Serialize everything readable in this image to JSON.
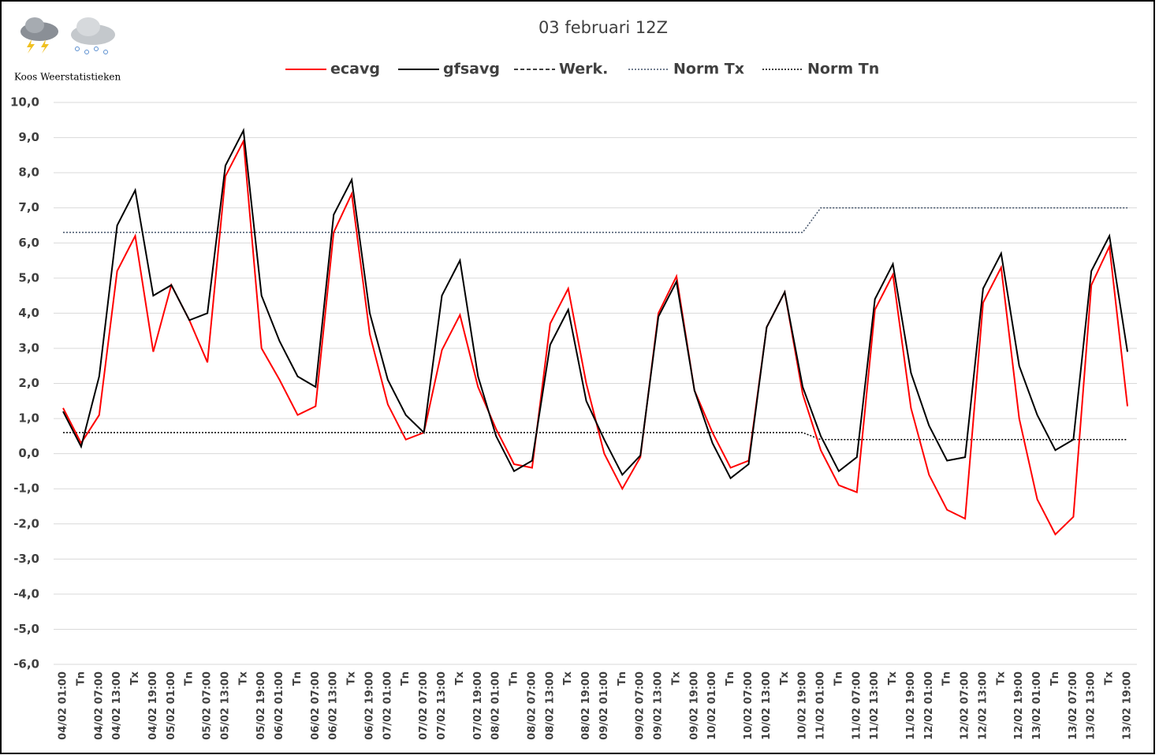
{
  "chart_data": {
    "type": "line",
    "title": "03 februari 12Z",
    "credit": "Koos Weerstatistieken",
    "categories": [
      "04/02 01:00",
      "Tn",
      "04/02 07:00",
      "04/02 13:00",
      "Tx",
      "04/02 19:00",
      "05/02 01:00",
      "Tn",
      "05/02 07:00",
      "05/02 13:00",
      "Tx",
      "05/02 19:00",
      "06/02 01:00",
      "Tn",
      "06/02 07:00",
      "06/02 13:00",
      "Tx",
      "06/02 19:00",
      "07/02 01:00",
      "Tn",
      "07/02 07:00",
      "07/02 13:00",
      "Tx",
      "07/02 19:00",
      "08/02 01:00",
      "Tn",
      "08/02 07:00",
      "08/02 13:00",
      "Tx",
      "08/02 19:00",
      "09/02 01:00",
      "Tn",
      "09/02 07:00",
      "09/02 13:00",
      "Tx",
      "09/02 19:00",
      "10/02 01:00",
      "Tn",
      "10/02 07:00",
      "10/02 13:00",
      "Tx",
      "10/02 19:00",
      "11/02 01:00",
      "Tn",
      "11/02 07:00",
      "11/02 13:00",
      "Tx",
      "11/02 19:00",
      "12/02 01:00",
      "Tn",
      "12/02 07:00",
      "12/02 13:00",
      "Tx",
      "12/02 19:00",
      "13/02 01:00",
      "Tn",
      "13/02 07:00",
      "13/02 13:00",
      "Tx",
      "13/02 19:00"
    ],
    "series": [
      {
        "name": "ecavg",
        "color": "#ff0000",
        "dash": "solid",
        "width": 2,
        "values": [
          1.3,
          0.3,
          1.1,
          5.2,
          6.2,
          2.9,
          4.8,
          3.8,
          2.6,
          7.9,
          8.9,
          3.0,
          2.1,
          1.1,
          1.35,
          6.3,
          7.4,
          3.4,
          1.4,
          0.4,
          0.6,
          2.95,
          3.95,
          1.9,
          0.7,
          -0.3,
          -0.4,
          3.7,
          4.7,
          2.0,
          0.0,
          -1.0,
          -0.1,
          4.0,
          5.05,
          1.8,
          0.6,
          -0.4,
          -0.2,
          3.6,
          4.6,
          1.7,
          0.1,
          -0.9,
          -1.1,
          4.1,
          5.1,
          1.3,
          -0.6,
          -1.6,
          -1.85,
          4.3,
          5.3,
          1.0,
          -1.3,
          -2.3,
          -1.8,
          4.8,
          5.9,
          1.35
        ]
      },
      {
        "name": "gfsavg",
        "color": "#000000",
        "dash": "solid",
        "width": 2,
        "values": [
          1.2,
          0.2,
          2.2,
          6.5,
          7.5,
          4.5,
          4.8,
          3.8,
          4.0,
          8.2,
          9.2,
          4.5,
          3.2,
          2.2,
          1.9,
          6.8,
          7.8,
          4.0,
          2.1,
          1.1,
          0.6,
          4.5,
          5.5,
          2.2,
          0.5,
          -0.5,
          -0.2,
          3.1,
          4.1,
          1.5,
          0.4,
          -0.6,
          -0.05,
          3.9,
          4.9,
          1.8,
          0.3,
          -0.7,
          -0.3,
          3.6,
          4.6,
          1.9,
          0.5,
          -0.5,
          -0.1,
          4.4,
          5.4,
          2.3,
          0.8,
          -0.2,
          -0.1,
          4.7,
          5.7,
          2.5,
          1.1,
          0.1,
          0.4,
          5.2,
          6.2,
          2.9
        ]
      },
      {
        "name": "Werk.",
        "color": "#000000",
        "dash": "dashed",
        "width": 1.5,
        "values": [
          null,
          null,
          null,
          null,
          null,
          null,
          null,
          null,
          null,
          null,
          null,
          null,
          null,
          null,
          null,
          null,
          null,
          null,
          null,
          null,
          null,
          null,
          null,
          null,
          null,
          null,
          null,
          null,
          null,
          null,
          null,
          null,
          null,
          null,
          null,
          null,
          null,
          null,
          null,
          null,
          null,
          null,
          null,
          null,
          null,
          null,
          null,
          null,
          null,
          null,
          null,
          null,
          null,
          null,
          null,
          null,
          null,
          null,
          null,
          null
        ]
      },
      {
        "name": "Norm Tx",
        "color": "#44546a",
        "dash": "dotted",
        "width": 1.5,
        "values": [
          6.3,
          6.3,
          6.3,
          6.3,
          6.3,
          6.3,
          6.3,
          6.3,
          6.3,
          6.3,
          6.3,
          6.3,
          6.3,
          6.3,
          6.3,
          6.3,
          6.3,
          6.3,
          6.3,
          6.3,
          6.3,
          6.3,
          6.3,
          6.3,
          6.3,
          6.3,
          6.3,
          6.3,
          6.3,
          6.3,
          6.3,
          6.3,
          6.3,
          6.3,
          6.3,
          6.3,
          6.3,
          6.3,
          6.3,
          6.3,
          6.3,
          6.3,
          7.0,
          7.0,
          7.0,
          7.0,
          7.0,
          7.0,
          7.0,
          7.0,
          7.0,
          7.0,
          7.0,
          7.0,
          7.0,
          7.0,
          7.0,
          7.0,
          7.0,
          7.0
        ]
      },
      {
        "name": "Norm Tn",
        "color": "#000000",
        "dash": "dotted",
        "width": 1.5,
        "values": [
          0.6,
          0.6,
          0.6,
          0.6,
          0.6,
          0.6,
          0.6,
          0.6,
          0.6,
          0.6,
          0.6,
          0.6,
          0.6,
          0.6,
          0.6,
          0.6,
          0.6,
          0.6,
          0.6,
          0.6,
          0.6,
          0.6,
          0.6,
          0.6,
          0.6,
          0.6,
          0.6,
          0.6,
          0.6,
          0.6,
          0.6,
          0.6,
          0.6,
          0.6,
          0.6,
          0.6,
          0.6,
          0.6,
          0.6,
          0.6,
          0.6,
          0.6,
          0.4,
          0.4,
          0.4,
          0.4,
          0.4,
          0.4,
          0.4,
          0.4,
          0.4,
          0.4,
          0.4,
          0.4,
          0.4,
          0.4,
          0.4,
          0.4,
          0.4,
          0.4
        ]
      }
    ],
    "ylim": [
      -6,
      10
    ],
    "yticks": [
      {
        "value": -6,
        "label": "-6,0"
      },
      {
        "value": -5,
        "label": "-5,0"
      },
      {
        "value": -4,
        "label": "-4,0"
      },
      {
        "value": -3,
        "label": "-3,0"
      },
      {
        "value": -2,
        "label": "-2,0"
      },
      {
        "value": -1,
        "label": "-1,0"
      },
      {
        "value": 0,
        "label": "0,0"
      },
      {
        "value": 1,
        "label": "1,0"
      },
      {
        "value": 2,
        "label": "2,0"
      },
      {
        "value": 3,
        "label": "3,0"
      },
      {
        "value": 4,
        "label": "4,0"
      },
      {
        "value": 5,
        "label": "5,0"
      },
      {
        "value": 6,
        "label": "6,0"
      },
      {
        "value": 7,
        "label": "7,0"
      },
      {
        "value": 8,
        "label": "8,0"
      },
      {
        "value": 9,
        "label": "9,0"
      },
      {
        "value": 10,
        "label": "10,0"
      }
    ],
    "grid": true,
    "legend": "top"
  }
}
